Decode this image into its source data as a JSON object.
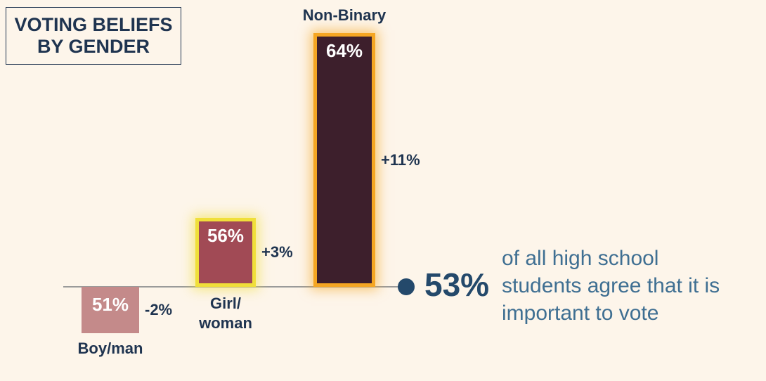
{
  "chart_data": {
    "type": "bar",
    "title": "VOTING BELIEFS BY GENDER",
    "categories": [
      "Boy/man",
      "Girl/ woman",
      "Non-Binary"
    ],
    "values": [
      51,
      56,
      64
    ],
    "value_labels": [
      "51%",
      "56%",
      "64%"
    ],
    "differences": [
      -2,
      3,
      11
    ],
    "difference_labels": [
      "-2%",
      "+3%",
      "+11%"
    ],
    "colors": [
      "#c48a8a",
      "#a14a55",
      "#3d1f2c"
    ],
    "border_colors": [
      null,
      "#f0df3a",
      "#f5a623"
    ],
    "reference": {
      "value": 53,
      "label": "53%",
      "text": "of all high school students agree that it is important to vote"
    }
  }
}
